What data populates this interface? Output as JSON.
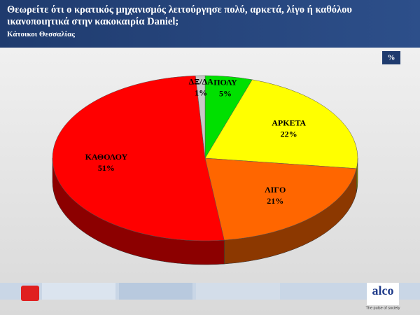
{
  "chart_data": {
    "type": "pie",
    "title": "Θεωρείτε ότι ο κρατικός μηχανισμός λειτούργησε πολύ, αρκετά, λίγο ή καθόλου ικανοποιητικά στην κακοκαιρία Daniel;",
    "subtitle": "Κάτοικοι Θεσσαλίας",
    "unit_label": "%",
    "categories": [
      "ΠΟΛΥ",
      "ΑΡΚΕΤΑ",
      "ΛΙΓΟ",
      "ΚΑΘΟΛΟΥ",
      "ΔΞ/ΔΑ"
    ],
    "values": [
      5,
      22,
      21,
      51,
      1
    ],
    "value_labels": [
      "5%",
      "22%",
      "21%",
      "51%",
      "1%"
    ],
    "colors": [
      "#00e000",
      "#ffff00",
      "#ff6600",
      "#ff0000",
      "#c8c8c8"
    ]
  },
  "footer": {
    "brand": "alco",
    "tagline": "The pulse of society"
  }
}
